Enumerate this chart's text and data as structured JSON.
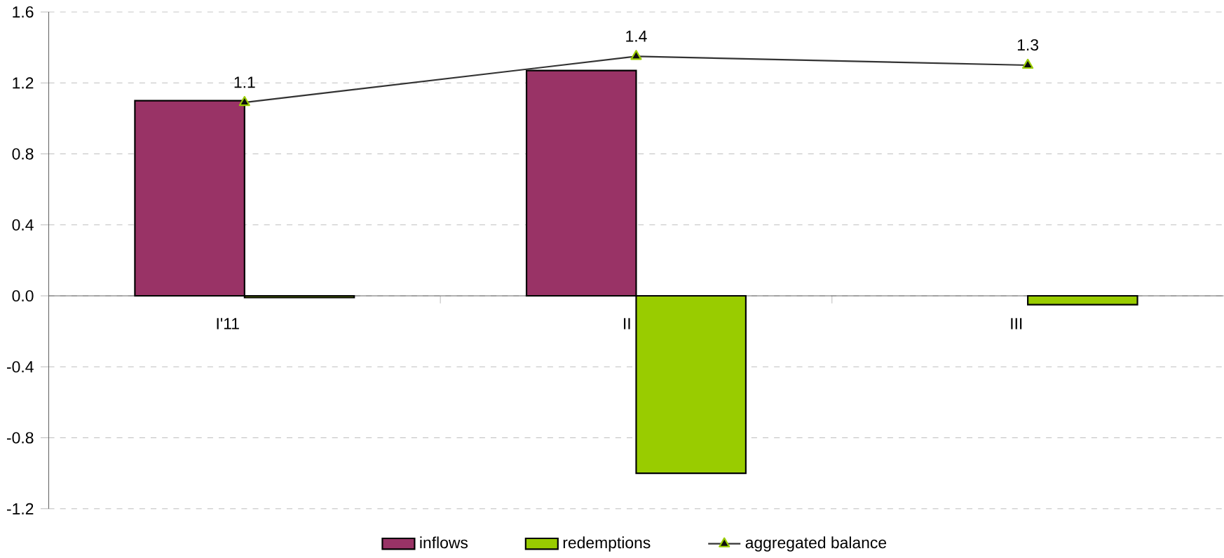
{
  "chart_data": {
    "type": "bar",
    "categories": [
      "I'11",
      "II",
      "III"
    ],
    "series": [
      {
        "name": "inflows",
        "color": "#993366",
        "values": [
          1.1,
          1.27,
          null
        ]
      },
      {
        "name": "redemptions",
        "color": "#99cc00",
        "values": [
          -0.01,
          -1.0,
          -0.05
        ]
      },
      {
        "name": "aggregated balance",
        "type": "line",
        "color": "#333333",
        "marker": "triangle",
        "values": [
          1.09,
          1.35,
          1.3
        ],
        "value_labels": [
          "1.1",
          "1.4",
          "1.3"
        ]
      }
    ],
    "ylim": [
      -1.2,
      1.6
    ],
    "yticks": [
      {
        "value": -1.2,
        "label": "-1.2"
      },
      {
        "value": -0.8,
        "label": "-0.8"
      },
      {
        "value": -0.4,
        "label": "-0.4"
      },
      {
        "value": 0,
        "label": "0.0"
      },
      {
        "value": 0.4,
        "label": "0.4"
      },
      {
        "value": 0.8,
        "label": "0.8"
      },
      {
        "value": 1.2,
        "label": "1.2"
      },
      {
        "value": 1.6,
        "label": "1.6"
      }
    ],
    "grid": "y",
    "legend": "bottom"
  }
}
